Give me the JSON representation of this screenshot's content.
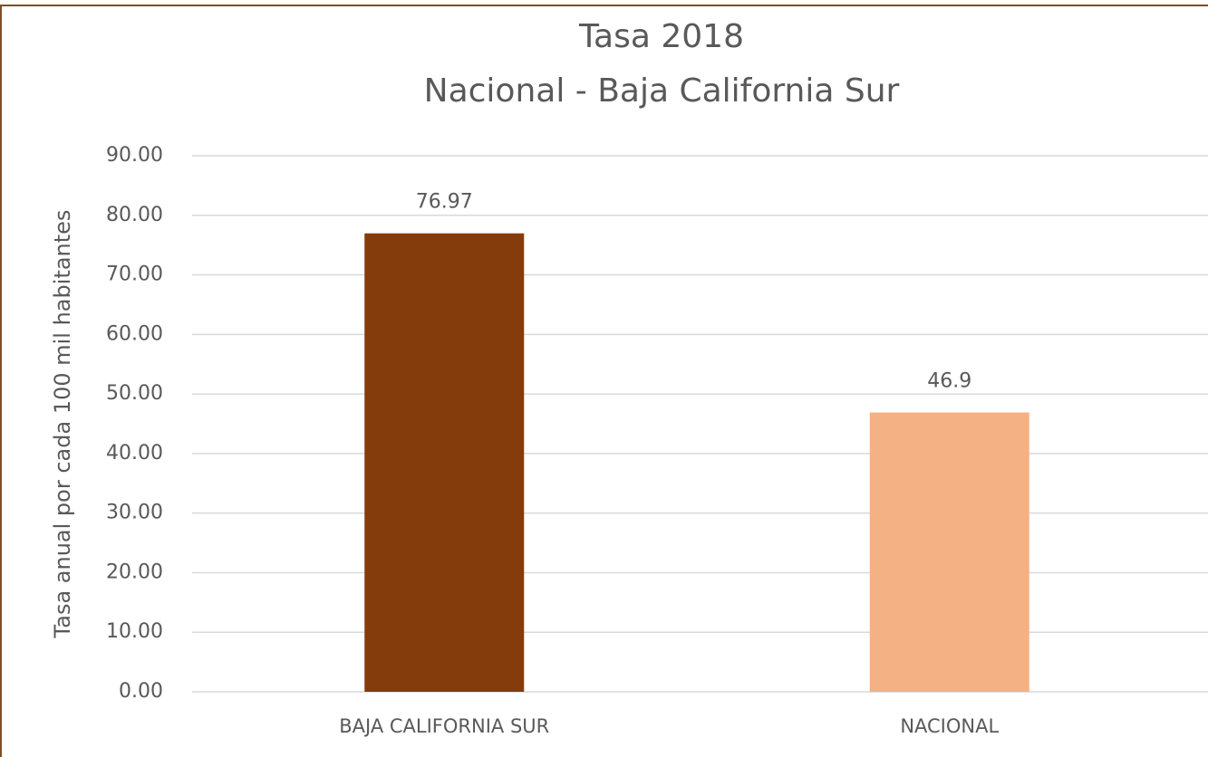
{
  "chart_data": {
    "type": "bar",
    "title": "Tasa 2018",
    "subtitle": "Nacional - Baja California Sur",
    "y_label": "Tasa anual por cada 100 mil habitantes",
    "categories": [
      "BAJA CALIFORNIA SUR",
      "NACIONAL"
    ],
    "values": [
      76.97,
      46.9
    ],
    "colors": [
      "#843c0c",
      "#f4b183"
    ],
    "ylim": [
      0,
      90
    ],
    "yticks": [
      {
        "value": 0,
        "label": "0.00"
      },
      {
        "value": 10,
        "label": "10.00"
      },
      {
        "value": 20,
        "label": "20.00"
      },
      {
        "value": 30,
        "label": "30.00"
      },
      {
        "value": 40,
        "label": "40.00"
      },
      {
        "value": 50,
        "label": "50.00"
      },
      {
        "value": 60,
        "label": "60.00"
      },
      {
        "value": 70,
        "label": "70.00"
      },
      {
        "value": 80,
        "label": "80.00"
      },
      {
        "value": 90,
        "label": "90.00"
      }
    ],
    "grid": true
  }
}
